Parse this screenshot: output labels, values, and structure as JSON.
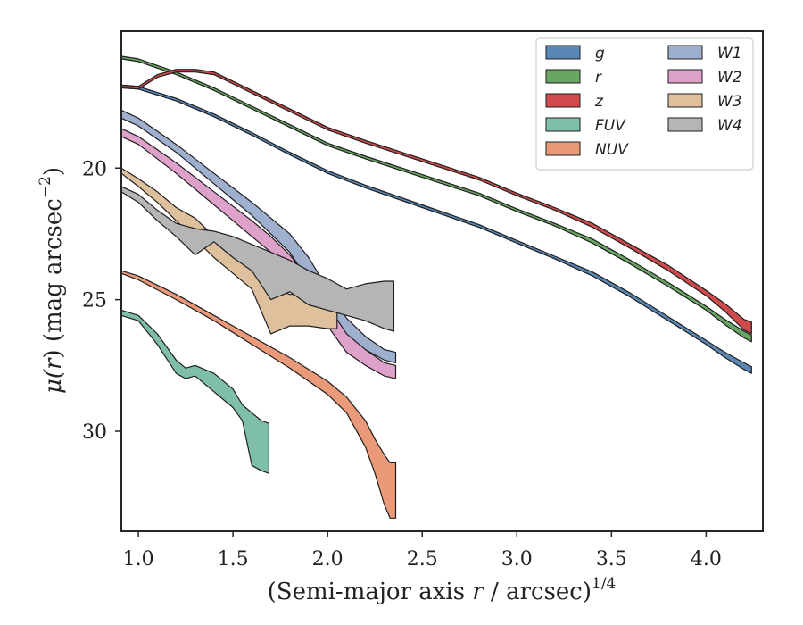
{
  "chart_data": {
    "type": "area",
    "title": "",
    "xlabel": {
      "main": "(Semi-major axis ",
      "var": "r",
      "rest": " / arcsec)",
      "sup": "1/4"
    },
    "ylabel": {
      "main": "μ(",
      "var": "r",
      "rest": ") (mag arcsec",
      "sup": "−2",
      "end": ")"
    },
    "xlim": [
      0.91,
      4.3
    ],
    "ylim": [
      14.8,
      33.8
    ],
    "y_inverted": true,
    "xticks": [
      1.0,
      1.5,
      2.0,
      2.5,
      3.0,
      3.5,
      4.0
    ],
    "xtick_labels": [
      "1.0",
      "1.5",
      "2.0",
      "2.5",
      "3.0",
      "3.5",
      "4.0"
    ],
    "yticks": [
      20,
      25,
      30
    ],
    "ytick_labels": [
      "20",
      "25",
      "30"
    ],
    "grid": false,
    "legend_position": "top-right",
    "legend_columns": 2,
    "series": [
      {
        "name": "g",
        "color": "#5a86b3",
        "x": [
          0.91,
          1.0,
          1.2,
          1.4,
          1.6,
          1.8,
          2.0,
          2.2,
          2.5,
          2.8,
          3.0,
          3.2,
          3.4,
          3.6,
          3.8,
          4.0,
          4.1,
          4.2,
          4.24
        ],
        "y1": [
          16.85,
          16.9,
          17.35,
          17.95,
          18.65,
          19.4,
          20.1,
          20.65,
          21.4,
          22.15,
          22.75,
          23.35,
          23.95,
          24.75,
          25.65,
          26.55,
          27.0,
          27.4,
          27.55
        ],
        "y2": [
          16.95,
          17.0,
          17.45,
          18.05,
          18.75,
          19.5,
          20.2,
          20.75,
          21.5,
          22.25,
          22.85,
          23.45,
          24.1,
          24.9,
          25.8,
          26.7,
          27.2,
          27.65,
          27.8
        ]
      },
      {
        "name": "r",
        "color": "#6aa663",
        "x": [
          0.91,
          1.0,
          1.2,
          1.4,
          1.6,
          1.8,
          2.0,
          2.2,
          2.5,
          2.8,
          3.0,
          3.2,
          3.4,
          3.6,
          3.8,
          4.0,
          4.1,
          4.2,
          4.24
        ],
        "y1": [
          15.75,
          15.85,
          16.35,
          16.95,
          17.65,
          18.35,
          19.05,
          19.55,
          20.25,
          20.95,
          21.55,
          22.1,
          22.7,
          23.5,
          24.35,
          25.25,
          25.75,
          26.2,
          26.35
        ],
        "y2": [
          15.85,
          15.95,
          16.45,
          17.05,
          17.75,
          18.45,
          19.15,
          19.65,
          20.35,
          21.05,
          21.65,
          22.2,
          22.85,
          23.65,
          24.5,
          25.4,
          25.95,
          26.45,
          26.6
        ]
      },
      {
        "name": "z",
        "color": "#cf4b4b",
        "x": [
          0.91,
          1.0,
          1.1,
          1.2,
          1.3,
          1.4,
          1.6,
          1.8,
          2.0,
          2.2,
          2.5,
          2.8,
          3.0,
          3.2,
          3.4,
          3.6,
          3.8,
          4.0,
          4.1,
          4.2,
          4.24
        ],
        "y1": [
          16.85,
          16.9,
          16.45,
          16.25,
          16.25,
          16.35,
          17.05,
          17.75,
          18.45,
          18.95,
          19.65,
          20.35,
          20.95,
          21.5,
          22.1,
          22.9,
          23.7,
          24.65,
          25.15,
          25.75,
          25.85
        ],
        "y2": [
          16.95,
          17.0,
          16.55,
          16.35,
          16.35,
          16.45,
          17.15,
          17.85,
          18.55,
          19.05,
          19.75,
          20.45,
          21.05,
          21.6,
          22.25,
          23.05,
          23.9,
          24.85,
          25.45,
          26.15,
          26.3
        ]
      },
      {
        "name": "FUV",
        "color": "#7fbfa7",
        "x": [
          0.91,
          1.0,
          1.1,
          1.2,
          1.25,
          1.3,
          1.4,
          1.5,
          1.55,
          1.6,
          1.65,
          1.69
        ],
        "y1": [
          25.4,
          25.6,
          26.3,
          27.3,
          27.6,
          27.5,
          27.8,
          28.4,
          29.0,
          29.3,
          29.6,
          29.7
        ],
        "y2": [
          25.6,
          25.8,
          26.7,
          27.8,
          28.0,
          27.9,
          28.5,
          29.1,
          29.6,
          31.3,
          31.5,
          31.6
        ]
      },
      {
        "name": "NUV",
        "color": "#ea9a79",
        "x": [
          0.91,
          1.0,
          1.2,
          1.4,
          1.6,
          1.8,
          2.0,
          2.1,
          2.2,
          2.25,
          2.3,
          2.33,
          2.36
        ],
        "y1": [
          23.9,
          24.1,
          24.8,
          25.6,
          26.4,
          27.2,
          28.1,
          28.7,
          29.6,
          30.3,
          30.9,
          31.2,
          31.2
        ],
        "y2": [
          24.0,
          24.25,
          25.0,
          25.8,
          26.7,
          27.6,
          28.6,
          29.3,
          30.6,
          31.6,
          32.8,
          33.3,
          33.3
        ]
      },
      {
        "name": "W1",
        "color": "#9fb0cf",
        "x": [
          0.91,
          1.0,
          1.2,
          1.4,
          1.6,
          1.8,
          1.9,
          2.0,
          2.1,
          2.2,
          2.3,
          2.36
        ],
        "y1": [
          17.8,
          18.1,
          19.1,
          20.2,
          21.3,
          22.5,
          23.4,
          24.6,
          25.7,
          26.4,
          26.9,
          27.0
        ],
        "y2": [
          18.1,
          18.4,
          19.4,
          20.6,
          21.8,
          23.2,
          24.3,
          25.4,
          26.4,
          26.9,
          27.3,
          27.4
        ]
      },
      {
        "name": "W2",
        "color": "#dea1c9",
        "x": [
          0.91,
          1.0,
          1.2,
          1.4,
          1.6,
          1.7,
          1.8,
          1.9,
          2.0,
          2.1,
          2.2,
          2.3,
          2.36
        ],
        "y1": [
          18.5,
          18.8,
          19.8,
          20.9,
          22.0,
          22.6,
          23.3,
          24.2,
          25.2,
          26.3,
          26.9,
          27.4,
          27.5
        ],
        "y2": [
          18.8,
          19.1,
          20.2,
          21.4,
          22.6,
          23.2,
          24.0,
          25.1,
          26.0,
          27.0,
          27.5,
          27.9,
          28.0
        ]
      },
      {
        "name": "W3",
        "color": "#dfc09c",
        "x": [
          0.91,
          1.0,
          1.1,
          1.2,
          1.3,
          1.4,
          1.5,
          1.6,
          1.7,
          1.8,
          1.9,
          2.0,
          2.05
        ],
        "y1": [
          20.0,
          20.4,
          20.9,
          21.5,
          21.9,
          22.6,
          23.2,
          23.7,
          24.5,
          24.8,
          24.8,
          25.0,
          25.1
        ],
        "y2": [
          20.2,
          20.7,
          21.3,
          22.0,
          22.7,
          23.4,
          24.0,
          24.6,
          26.3,
          26.0,
          26.0,
          26.1,
          26.1
        ]
      },
      {
        "name": "W4",
        "color": "#b5b5b5",
        "x": [
          0.91,
          1.0,
          1.1,
          1.2,
          1.3,
          1.4,
          1.5,
          1.6,
          1.7,
          1.8,
          1.9,
          2.0,
          2.1,
          2.2,
          2.3,
          2.35
        ],
        "y1": [
          20.7,
          21.0,
          21.6,
          22.1,
          22.3,
          22.4,
          22.6,
          22.9,
          23.2,
          23.5,
          23.9,
          24.2,
          24.6,
          24.4,
          24.3,
          24.3
        ],
        "y2": [
          20.9,
          21.3,
          22.0,
          22.6,
          23.3,
          22.8,
          23.4,
          23.9,
          25.0,
          24.7,
          25.2,
          25.4,
          25.6,
          25.8,
          26.1,
          26.2
        ]
      }
    ]
  }
}
